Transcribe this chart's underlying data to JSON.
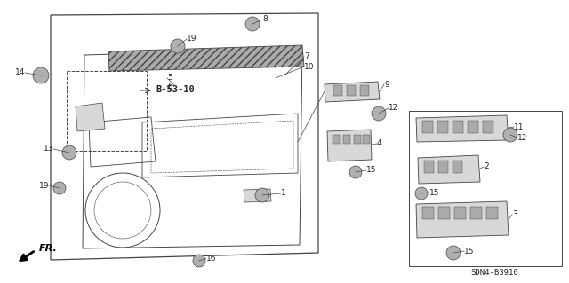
{
  "bg_color": "#ffffff",
  "fig_width": 6.4,
  "fig_height": 3.19,
  "diagram_code": "SDN4-B3910",
  "line_color": "#444444",
  "text_color": "#222222",
  "label_fontsize": 6.5,
  "bold_label": "B-53-10",
  "fr_text": "FR.",
  "gray_fill": "#b0b0b0",
  "light_gray": "#d8d8d8",
  "medium_gray": "#aaaaaa"
}
